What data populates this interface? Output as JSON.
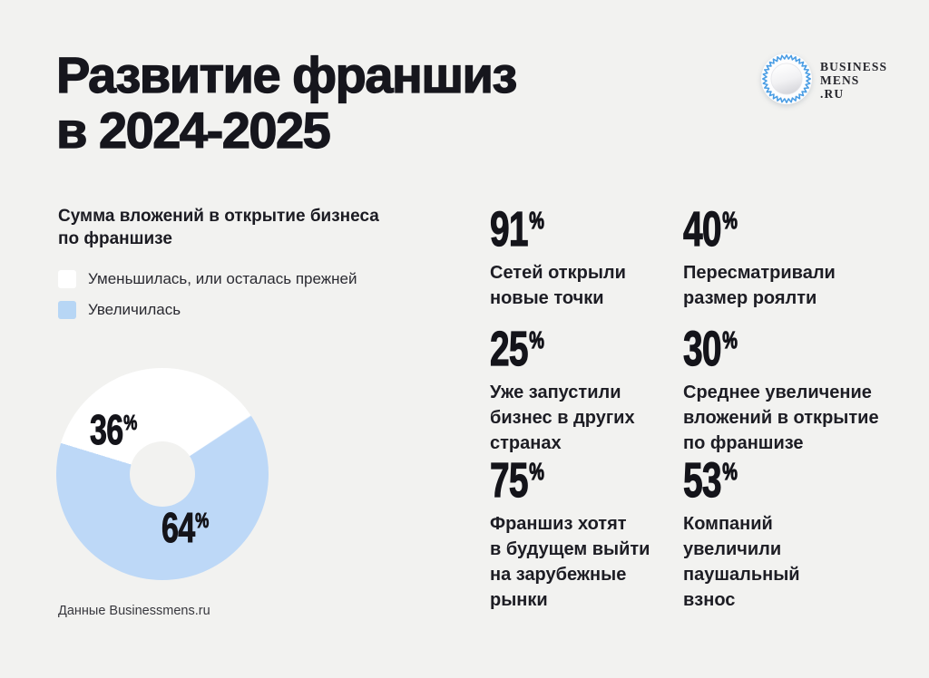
{
  "header": {
    "title": "Развитие франшиз\nв 2024-2025"
  },
  "logo": {
    "text": "BUSINESS\nMENS\n.RU",
    "badge_icon": "seal-badge-icon",
    "ring_color": "#4a9de4"
  },
  "chart_section": {
    "heading": "Сумма вложений в открытие бизнеса\nпо франшизе",
    "legend": [
      {
        "label": "Уменьшилась, или осталась прежней",
        "color": "#ffffff"
      },
      {
        "label": "Увеличилась",
        "color": "#b7d6f5"
      }
    ]
  },
  "chart_data": {
    "type": "pie",
    "donut": true,
    "title": "Сумма вложений в открытие бизнеса по франшизе",
    "slices": [
      {
        "label": "Уменьшилась, или осталась прежней",
        "value": 36,
        "display": "36",
        "unit": "%",
        "color": "#ffffff"
      },
      {
        "label": "Увеличилась",
        "value": 64,
        "display": "64",
        "unit": "%",
        "color": "#bdd8f7"
      }
    ],
    "rotation_deg": 287,
    "hole_ratio": 0.3,
    "legend_position": "above-left"
  },
  "stats": [
    {
      "value": "91",
      "unit": "%",
      "caption": "Сетей открыли\nновые точки"
    },
    {
      "value": "40",
      "unit": "%",
      "caption": "Пересматривали\nразмер роялти"
    },
    {
      "value": "25",
      "unit": "%",
      "caption": "Уже запустили\nбизнес в других\nстранах"
    },
    {
      "value": "30",
      "unit": "%",
      "caption": "Среднее увеличение\nвложений в открытие\nпо франшизе"
    },
    {
      "value": "75",
      "unit": "%",
      "caption": "Франшиз хотят\nв будущем выйти\nна зарубежные\nрынки"
    },
    {
      "value": "53",
      "unit": "%",
      "caption": "Компаний\nувеличили\nпаушальный\nвзнос"
    }
  ],
  "footer": {
    "source_note": "Данные Businessmens.ru"
  },
  "colors": {
    "background": "#f2f2f0",
    "text_primary": "#16161d",
    "accent_blue": "#bdd8f7",
    "logo_ring_blue": "#4a9de4"
  }
}
